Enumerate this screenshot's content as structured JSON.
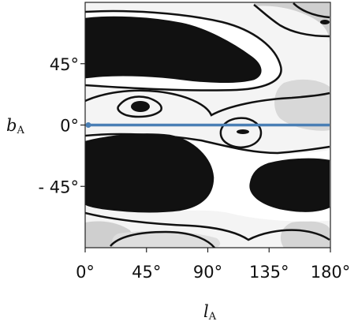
{
  "chart_data": {
    "type": "heatmap",
    "title": "",
    "xlabel_main": "l",
    "xlabel_sub": "A",
    "ylabel_main": "b",
    "ylabel_sub": "A",
    "xlim": [
      0,
      180
    ],
    "ylim": [
      -90,
      90
    ],
    "x_ticks": [
      0,
      45,
      90,
      135,
      180
    ],
    "x_tick_labels": [
      "0°",
      "45°",
      "90°",
      "135°",
      "180°"
    ],
    "y_ticks": [
      45,
      0,
      -45
    ],
    "y_tick_labels": [
      "45°",
      "0°",
      "- 45°"
    ],
    "grid": false,
    "colormap": "grayscale (white = low density, black = high density)",
    "reference_line": {
      "y": 0,
      "x_range": [
        0,
        180
      ],
      "color": "#4a7fb5"
    },
    "dense_regions": [
      {
        "name": "upper band",
        "x_range": [
          0,
          130
        ],
        "y_range": [
          35,
          78
        ]
      },
      {
        "name": "lower-left region",
        "x_range": [
          0,
          95
        ],
        "y_range": [
          -70,
          -20
        ]
      },
      {
        "name": "lower-right region",
        "x_range": [
          118,
          180
        ],
        "y_range": [
          -62,
          -28
        ]
      },
      {
        "name": "small peak near (37°, 15°)",
        "center": [
          37,
          15
        ]
      },
      {
        "name": "small peak near (115°, -5°)",
        "center": [
          115,
          -5
        ]
      },
      {
        "name": "corner peak near (175°, 82°)",
        "center": [
          175,
          82
        ]
      }
    ]
  },
  "colors": {
    "reference_line": "#4a7fb5",
    "dense_fill": "#111111",
    "contour": "#111111",
    "background_light": "#f2f2f2"
  }
}
